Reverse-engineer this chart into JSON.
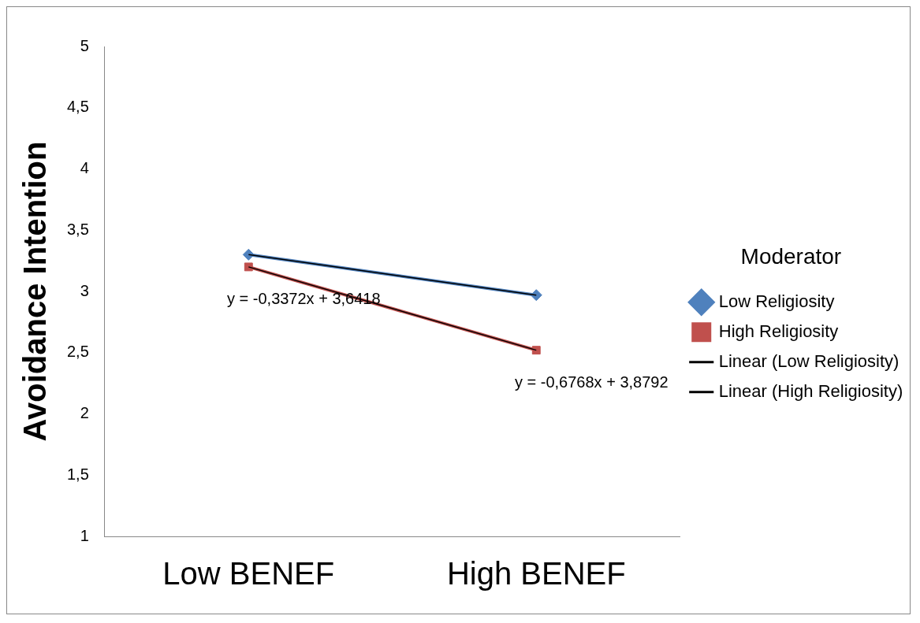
{
  "chart_data": {
    "type": "line",
    "ylabel": "Avoidance Intention",
    "legend_title": "Moderator",
    "legend": "right",
    "grid": false,
    "categories": [
      "Low BENEF",
      "High BENEF"
    ],
    "ylim": [
      1,
      5
    ],
    "yticks": [
      1,
      {
        "value": 1.5,
        "label": "1,5"
      },
      2,
      {
        "value": 2.5,
        "label": "2,5"
      },
      3,
      {
        "value": 3.5,
        "label": "3,5"
      },
      4,
      {
        "value": 4.5,
        "label": "4,5"
      },
      5
    ],
    "series": [
      {
        "name": "Low Religiosity",
        "color": "#4f81bd",
        "values": [
          3.3,
          2.97
        ],
        "marker": "diamond"
      },
      {
        "name": "High Religiosity",
        "color": "#c0504d",
        "values": [
          3.2,
          2.52
        ],
        "marker": "square"
      },
      {
        "name": "Linear (Low Religiosity)",
        "type": "line",
        "color": "#000000",
        "values": [
          3.3,
          2.97
        ],
        "marker": "none"
      },
      {
        "name": "Linear (High Religiosity)",
        "type": "line",
        "color": "#000000",
        "values": [
          3.2,
          2.52
        ],
        "marker": "none"
      }
    ],
    "annotations": [
      "y = -0,3372x + 3,6418",
      "y = -0,6768x + 3,8792"
    ]
  }
}
